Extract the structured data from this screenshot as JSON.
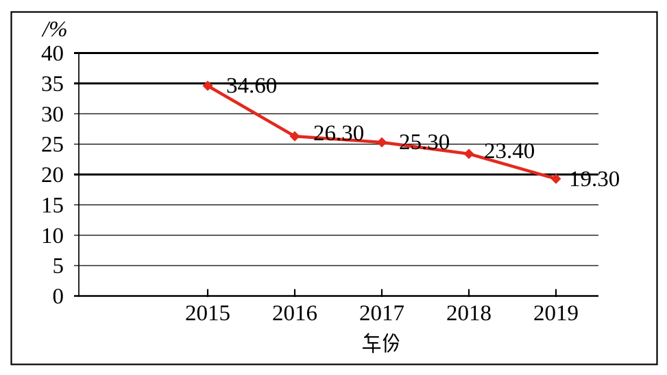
{
  "chart_data": {
    "type": "line",
    "title": "",
    "xlabel": "年份",
    "ylabel": "/%",
    "categories": [
      "2015",
      "2016",
      "2017",
      "2018",
      "2019"
    ],
    "series": [
      {
        "name": "",
        "values": [
          34.6,
          26.3,
          25.3,
          23.4,
          19.3
        ]
      }
    ],
    "point_labels": [
      "34.60",
      "26.30",
      "25.30",
      "23.40",
      "19.30"
    ],
    "yticks": [
      0,
      5,
      10,
      15,
      20,
      25,
      30,
      35,
      40
    ],
    "ylim": [
      0,
      40
    ],
    "grid": "horizontal",
    "emphasized_gridlines": [
      40,
      35,
      20
    ],
    "legend": "none",
    "marker": "diamond",
    "line_color": "#e3291d",
    "text_color": "#000000",
    "border_color": "#000000",
    "background": "#ffffff"
  }
}
